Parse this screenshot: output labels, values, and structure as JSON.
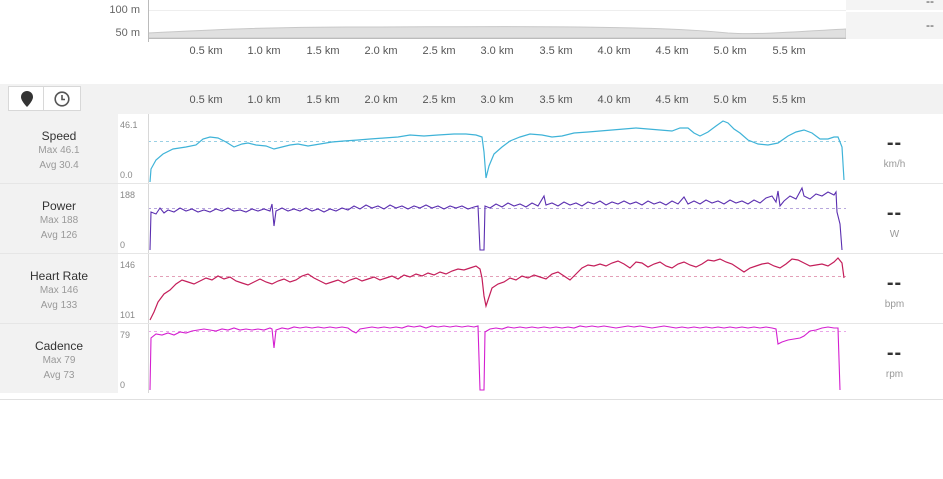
{
  "elevation": {
    "y_labels": [
      "100 m",
      "50 m"
    ],
    "right_values": [
      "--",
      "--"
    ]
  },
  "distance_axis": [
    "0.5 km",
    "1.0 km",
    "1.5 km",
    "2.0 km",
    "2.5 km",
    "3.0 km",
    "3.5 km",
    "4.0 km",
    "4.5 km",
    "5.0 km",
    "5.5 km"
  ],
  "toolbar": {
    "map_icon": "map-pin-icon",
    "time_icon": "clock-icon"
  },
  "metrics": [
    {
      "id": "speed",
      "title": "Speed",
      "max_label": "Max 46.1",
      "avg_label": "Avg 30.4",
      "y_max": "46.1",
      "y_min": "0.0",
      "unit": "km/h",
      "value": "--",
      "color": "#3fb3d8"
    },
    {
      "id": "power",
      "title": "Power",
      "max_label": "Max 188",
      "avg_label": "Avg 126",
      "y_max": "188",
      "y_min": "0",
      "unit": "W",
      "value": "--",
      "color": "#5b2fb0"
    },
    {
      "id": "heart-rate",
      "title": "Heart Rate",
      "max_label": "Max 146",
      "avg_label": "Avg 133",
      "y_max": "146",
      "y_min": "101",
      "unit": "bpm",
      "value": "--",
      "color": "#c41e5a"
    },
    {
      "id": "cadence",
      "title": "Cadence",
      "max_label": "Max 79",
      "avg_label": "Avg 73",
      "y_max": "79",
      "y_min": "0",
      "unit": "rpm",
      "value": "--",
      "color": "#d41fd0"
    }
  ]
}
